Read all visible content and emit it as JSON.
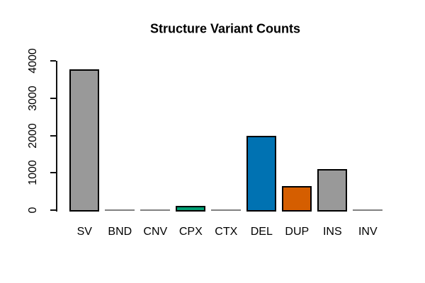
{
  "title": "Structure Variant Counts",
  "background_color": "#FFFFFF",
  "chart_data": {
    "type": "bar",
    "title": "Structure Variant Counts",
    "xlabel": "",
    "ylabel": "",
    "categories": [
      "SV",
      "BND",
      "CNV",
      "CPX",
      "CTX",
      "DEL",
      "DUP",
      "INS",
      "INV"
    ],
    "values": [
      3750,
      5,
      15,
      80,
      5,
      1950,
      600,
      1070,
      15
    ],
    "bar_colors": [
      "#999999",
      "#999999",
      "#999999",
      "#009E73",
      "#999999",
      "#0072B2",
      "#D55E00",
      "#999999",
      "#999999"
    ],
    "bar_border_color": "#000000",
    "axis_color": "#111111",
    "text_color": "#000000",
    "ylim": [
      0,
      4000
    ],
    "yticks": [
      0,
      1000,
      2000,
      3000,
      4000
    ],
    "ytick_labels": [
      "0",
      "1000",
      "2000",
      "3000",
      "4000"
    ],
    "grid": false,
    "legend": "none"
  }
}
